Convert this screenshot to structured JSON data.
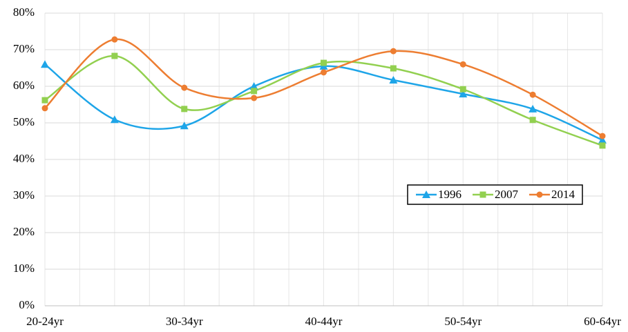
{
  "chart_data": {
    "type": "line",
    "categories": [
      "20-24yr",
      null,
      "30-34yr",
      null,
      "40-44yr",
      null,
      "50-54yr",
      null,
      "60-64yr"
    ],
    "series": [
      {
        "name": "1996",
        "color": "#1ea5e8",
        "marker": "triangle",
        "values": [
          66.0,
          50.9,
          49.2,
          60.0,
          65.5,
          61.7,
          57.9,
          53.8,
          45.3
        ]
      },
      {
        "name": "2007",
        "color": "#92d050",
        "marker": "square",
        "values": [
          56.2,
          68.3,
          53.8,
          58.7,
          66.4,
          64.9,
          59.2,
          50.8,
          43.8
        ]
      },
      {
        "name": "2014",
        "color": "#ed7d31",
        "marker": "circle",
        "values": [
          54.0,
          72.8,
          59.6,
          56.8,
          63.8,
          69.6,
          66.0,
          57.7,
          46.4
        ]
      }
    ],
    "ylim": [
      0,
      80
    ],
    "yticks": [
      {
        "value": 0,
        "label": "0%"
      },
      {
        "value": 10,
        "label": "10%"
      },
      {
        "value": 20,
        "label": "20%"
      },
      {
        "value": 30,
        "label": "30%"
      },
      {
        "value": 40,
        "label": "40%"
      },
      {
        "value": 50,
        "label": "50%"
      },
      {
        "value": 60,
        "label": "60%"
      },
      {
        "value": 70,
        "label": "70%"
      },
      {
        "value": 80,
        "label": "80%"
      }
    ],
    "grid": true,
    "smooth": true,
    "legend": "right"
  }
}
